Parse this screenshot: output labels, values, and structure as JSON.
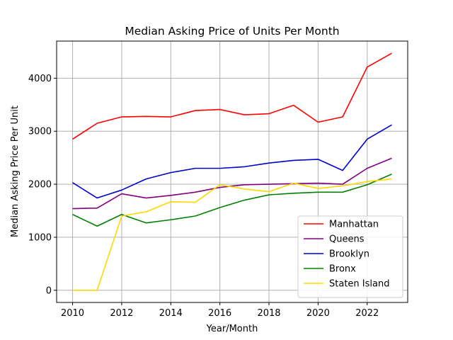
{
  "chart_data": {
    "type": "line",
    "title": "Median Asking Price of Units Per Month",
    "xlabel": "Year/Month",
    "ylabel": "Median Asking Price Per Unit",
    "xlim": [
      2009.35,
      2023.65
    ],
    "ylim": [
      -230,
      4700
    ],
    "xticks": [
      2010,
      2012,
      2014,
      2016,
      2018,
      2020,
      2022
    ],
    "xtick_labels": [
      "2010",
      "2012",
      "2014",
      "2016",
      "2018",
      "2020",
      "2022"
    ],
    "yticks": [
      0,
      1000,
      2000,
      3000,
      4000
    ],
    "ytick_labels": [
      "0",
      "1000",
      "2000",
      "3000",
      "4000"
    ],
    "grid": true,
    "legend_position": "lower-right",
    "x": [
      2010,
      2011,
      2012,
      2013,
      2014,
      2015,
      2016,
      2017,
      2018,
      2019,
      2020,
      2021,
      2022,
      2023
    ],
    "series": [
      {
        "name": "Manhattan",
        "color": "#ff0000",
        "values": [
          2850,
          3150,
          3270,
          3280,
          3270,
          3390,
          3410,
          3310,
          3330,
          3490,
          3170,
          3270,
          4210,
          4470
        ]
      },
      {
        "name": "Queens",
        "color": "#800080",
        "values": [
          1540,
          1550,
          1820,
          1740,
          1790,
          1850,
          1940,
          1990,
          2000,
          2010,
          2020,
          2000,
          2300,
          2490
        ]
      },
      {
        "name": "Brooklyn",
        "color": "#0000cd",
        "values": [
          2030,
          1740,
          1890,
          2100,
          2220,
          2300,
          2300,
          2330,
          2400,
          2450,
          2470,
          2260,
          2850,
          3120
        ]
      },
      {
        "name": "Bronx",
        "color": "#008000",
        "values": [
          1430,
          1210,
          1430,
          1270,
          1330,
          1400,
          1560,
          1700,
          1800,
          1830,
          1850,
          1850,
          1990,
          2190
        ]
      },
      {
        "name": "Staten Island",
        "color": "#ffd700",
        "values": [
          0,
          0,
          1400,
          1480,
          1670,
          1660,
          1990,
          1910,
          1860,
          2020,
          1920,
          1970,
          2050,
          2100
        ]
      }
    ]
  }
}
